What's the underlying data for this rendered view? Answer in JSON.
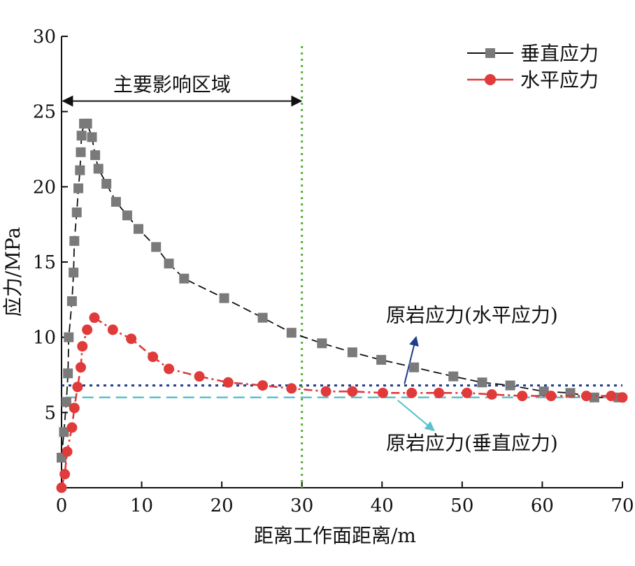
{
  "chart_data": {
    "type": "line",
    "xlabel": "距离工作面距离/m",
    "ylabel": "应力/MPa",
    "xlim": [
      0,
      70
    ],
    "ylim": [
      0,
      30
    ],
    "xticks": [
      0,
      10,
      20,
      30,
      40,
      50,
      60,
      70
    ],
    "yticks": [
      5,
      10,
      15,
      20,
      25,
      30
    ],
    "grid": false,
    "legend_position": "top-right",
    "series": [
      {
        "name": "垂直应力",
        "color": "#7a7a7a",
        "line_color": "#111111",
        "marker": "square",
        "line_style": "dash",
        "points": [
          [
            0,
            2.0
          ],
          [
            0.3,
            3.7
          ],
          [
            0.6,
            5.7
          ],
          [
            0.8,
            7.6
          ],
          [
            0.9,
            10.0
          ],
          [
            1.3,
            12.4
          ],
          [
            1.5,
            14.3
          ],
          [
            1.6,
            16.4
          ],
          [
            1.9,
            18.3
          ],
          [
            2.1,
            19.9
          ],
          [
            2.3,
            21.1
          ],
          [
            2.4,
            22.3
          ],
          [
            2.5,
            23.4
          ],
          [
            2.8,
            24.2
          ],
          [
            3.2,
            24.2
          ],
          [
            3.8,
            23.3
          ],
          [
            4.2,
            22.1
          ],
          [
            4.6,
            21.2
          ],
          [
            5.6,
            20.2
          ],
          [
            6.8,
            19.0
          ],
          [
            8.2,
            18.1
          ],
          [
            9.6,
            17.2
          ],
          [
            11.8,
            16.0
          ],
          [
            13.4,
            14.9
          ],
          [
            15.3,
            13.9
          ],
          [
            20.3,
            12.6
          ],
          [
            25.1,
            11.3
          ],
          [
            28.7,
            10.3
          ],
          [
            32.5,
            9.6
          ],
          [
            36.3,
            9.0
          ],
          [
            39.9,
            8.5
          ],
          [
            44.0,
            8.0
          ],
          [
            48.9,
            7.4
          ],
          [
            52.5,
            7.0
          ],
          [
            56.0,
            6.8
          ],
          [
            60.2,
            6.4
          ],
          [
            63.5,
            6.3
          ],
          [
            66.5,
            6.0
          ],
          [
            69.5,
            6.0
          ]
        ]
      },
      {
        "name": "水平应力",
        "color": "#e03a3a",
        "line_color": "#e03a3a",
        "marker": "circle",
        "line_style": "dash-dot",
        "points": [
          [
            0,
            0.0
          ],
          [
            0.4,
            0.9
          ],
          [
            0.7,
            2.4
          ],
          [
            1.3,
            4.0
          ],
          [
            1.6,
            5.3
          ],
          [
            2.0,
            6.7
          ],
          [
            2.4,
            8.0
          ],
          [
            2.6,
            9.4
          ],
          [
            3.2,
            10.5
          ],
          [
            4.1,
            11.3
          ],
          [
            6.4,
            10.5
          ],
          [
            8.7,
            9.9
          ],
          [
            11.4,
            8.7
          ],
          [
            13.4,
            7.9
          ],
          [
            17.2,
            7.4
          ],
          [
            20.8,
            7.0
          ],
          [
            25.1,
            6.8
          ],
          [
            28.7,
            6.6
          ],
          [
            33.0,
            6.4
          ],
          [
            36.3,
            6.4
          ],
          [
            40.1,
            6.3
          ],
          [
            43.7,
            6.3
          ],
          [
            47.1,
            6.3
          ],
          [
            50.6,
            6.3
          ],
          [
            53.7,
            6.2
          ],
          [
            57.5,
            6.1
          ],
          [
            61.1,
            6.1
          ],
          [
            65.5,
            6.1
          ],
          [
            68.6,
            6.1
          ],
          [
            70.0,
            6.0
          ]
        ]
      }
    ],
    "reference_lines": [
      {
        "label": "原岩应力(水平应力)",
        "y": 6.8,
        "color": "#1f3d8a",
        "style": "dotted"
      },
      {
        "label": "原岩应力(垂直应力)",
        "y": 6.0,
        "color": "#5bc2cc",
        "style": "dashed"
      },
      {
        "x": 30,
        "color": "#55b033",
        "style": "dotted"
      }
    ],
    "annotations": {
      "influence_zone": {
        "label": "主要影响区域",
        "x_from": 0,
        "x_to": 30,
        "y": 25.7,
        "label_x": 15
      },
      "horizontal_ref_label": {
        "x": 40.5,
        "y": 11.5,
        "arrow_from": [
          43.0,
          8.7
        ],
        "arrow_to": [
          42.0,
          6.8
        ],
        "tip_at": [
          46.0,
          10.3
        ],
        "tail_at": [
          42.8,
          6.9
        ]
      },
      "vertical_ref_label": {
        "x": 40.5,
        "y": 3.0,
        "arrow_from": [
          43.0,
          6.0
        ],
        "arrow_to": [
          46.5,
          3.8
        ]
      }
    }
  }
}
